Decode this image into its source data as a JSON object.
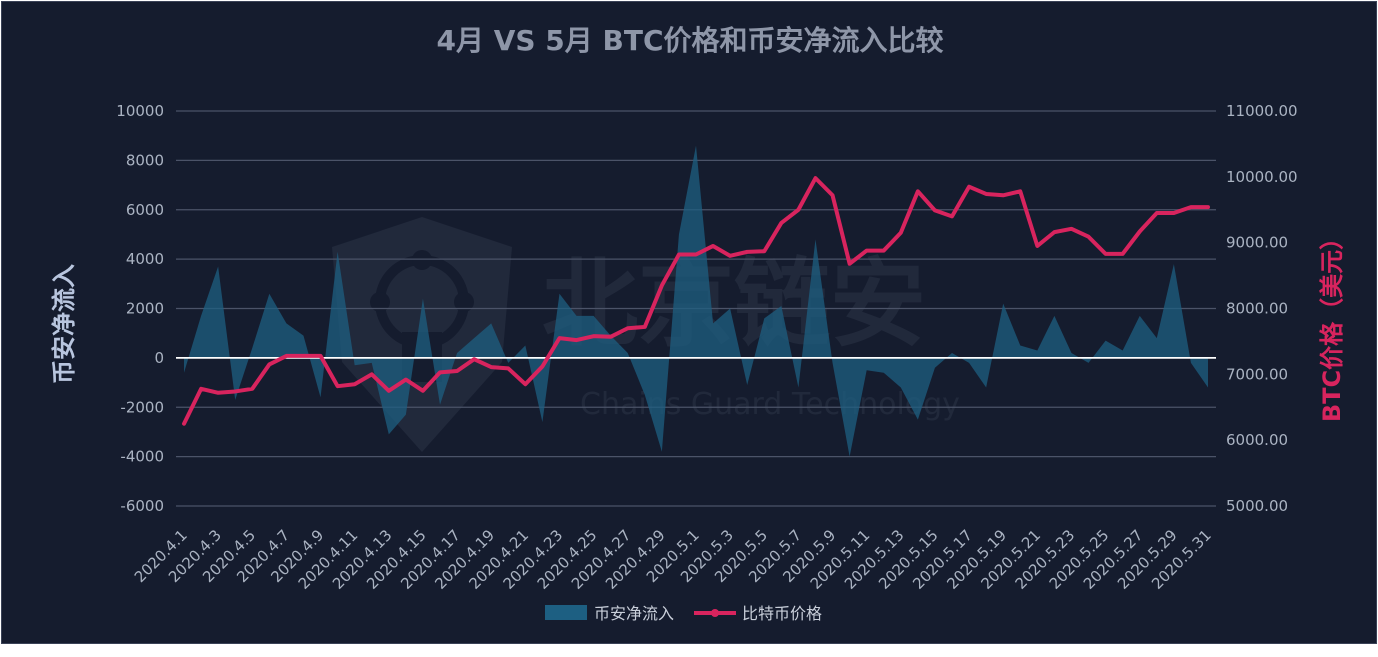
{
  "colors": {
    "background": "#151c2e",
    "grid": "#4b5368",
    "zero_line": "#ffffff",
    "area_fill": "#1d5f82",
    "price_line": "#d8245e",
    "left_axis_label": "#b8c5de",
    "right_axis_label": "#d8245e"
  },
  "watermark": {
    "main": "北京链安",
    "sub": "Chains Guard Technology"
  },
  "chart_data": {
    "type": "area",
    "title": "4月 VS 5月 BTC价格和币安净流入比较",
    "ylabel": "币安净流入",
    "y2label": "BTC价格（美元）",
    "xlabel": "",
    "ylim": [
      -6000,
      10000
    ],
    "y2lim": [
      5000,
      11000
    ],
    "yticks": [
      "10000",
      "8000",
      "6000",
      "4000",
      "2000",
      "0",
      "-2000",
      "-4000",
      "-6000"
    ],
    "y2ticks": [
      "11000.00",
      "10000.00",
      "9000.00",
      "8000.00",
      "7000.00",
      "6000.00",
      "5000.00"
    ],
    "grid": true,
    "legend_position": "bottom",
    "x": [
      "2020.4.1",
      "2020.4.2",
      "2020.4.3",
      "2020.4.4",
      "2020.4.5",
      "2020.4.6",
      "2020.4.7",
      "2020.4.8",
      "2020.4.9",
      "2020.4.10",
      "2020.4.11",
      "2020.4.12",
      "2020.4.13",
      "2020.4.14",
      "2020.4.15",
      "2020.4.16",
      "2020.4.17",
      "2020.4.18",
      "2020.4.19",
      "2020.4.20",
      "2020.4.21",
      "2020.4.22",
      "2020.4.23",
      "2020.4.24",
      "2020.4.25",
      "2020.4.26",
      "2020.4.27",
      "2020.4.28",
      "2020.4.29",
      "2020.4.30",
      "2020.5.1",
      "2020.5.2",
      "2020.5.3",
      "2020.5.4",
      "2020.5.5",
      "2020.5.6",
      "2020.5.7",
      "2020.5.8",
      "2020.5.9",
      "2020.5.10",
      "2020.5.11",
      "2020.5.12",
      "2020.5.13",
      "2020.5.14",
      "2020.5.15",
      "2020.5.16",
      "2020.5.17",
      "2020.5.18",
      "2020.5.19",
      "2020.5.20",
      "2020.5.21",
      "2020.5.22",
      "2020.5.23",
      "2020.5.24",
      "2020.5.25",
      "2020.5.26",
      "2020.5.27",
      "2020.5.28",
      "2020.5.29",
      "2020.5.30",
      "2020.5.31"
    ],
    "xtick_labels": [
      "2020.4.1",
      "2020.4.3",
      "2020.4.5",
      "2020.4.7",
      "2020.4.9",
      "2020.4.11",
      "2020.4.13",
      "2020.4.15",
      "2020.4.17",
      "2020.4.19",
      "2020.4.21",
      "2020.4.23",
      "2020.4.25",
      "2020.4.27",
      "2020.4.29",
      "2020.5.1",
      "2020.5.3",
      "2020.5.5",
      "2020.5.7",
      "2020.5.9",
      "2020.5.11",
      "2020.5.13",
      "2020.5.15",
      "2020.5.17",
      "2020.5.19",
      "2020.5.21",
      "2020.5.23",
      "2020.5.25",
      "2020.5.27",
      "2020.5.29",
      "2020.5.31"
    ],
    "series": [
      {
        "name": "币安净流入",
        "type": "area",
        "axis": "left",
        "values": [
          -600,
          1700,
          3700,
          -1700,
          400,
          2600,
          1400,
          900,
          -1600,
          4300,
          -300,
          -200,
          -3100,
          -2300,
          2400,
          -1900,
          200,
          800,
          1400,
          -200,
          500,
          -2600,
          2600,
          1700,
          1700,
          900,
          200,
          -1500,
          -3800,
          5000,
          8600,
          1400,
          2000,
          -1100,
          1600,
          2100,
          -1200,
          4800,
          -200,
          -4000,
          -500,
          -600,
          -1200,
          -2500,
          -400,
          200,
          -200,
          -1200,
          2200,
          500,
          300,
          1700,
          200,
          -200,
          700,
          300,
          1700,
          800,
          3800,
          -200,
          -1200
        ]
      },
      {
        "name": "比特币价格",
        "type": "line",
        "axis": "right",
        "values": [
          6250,
          6780,
          6720,
          6740,
          6780,
          7150,
          7280,
          7280,
          7280,
          6820,
          6850,
          7000,
          6750,
          6920,
          6750,
          7030,
          7050,
          7230,
          7110,
          7090,
          6850,
          7120,
          7550,
          7520,
          7580,
          7570,
          7700,
          7720,
          8350,
          8820,
          8820,
          8950,
          8800,
          8860,
          8870,
          9300,
          9500,
          9980,
          9720,
          8680,
          8880,
          8880,
          9150,
          9780,
          9490,
          9400,
          9850,
          9740,
          9720,
          9780,
          8950,
          9160,
          9210,
          9090,
          8830,
          8830,
          9170,
          9450,
          9450,
          9540,
          9540
        ]
      }
    ]
  }
}
